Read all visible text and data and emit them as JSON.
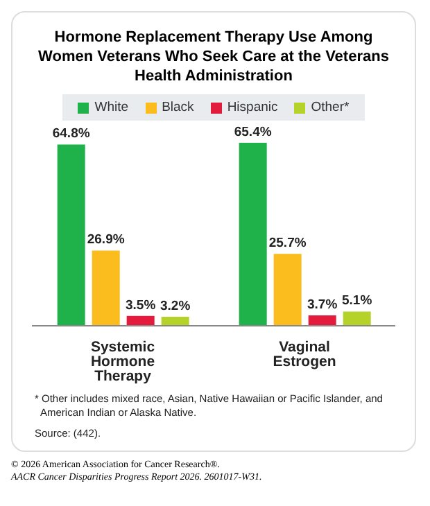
{
  "chart_data": {
    "type": "bar",
    "title": "Hormone Replacement Therapy Use Among Women Veterans Who Seek Care at the Veterans Health Administration",
    "categories": [
      "Systemic Hormone Therapy",
      "Vaginal Estrogen"
    ],
    "series": [
      {
        "name": "White",
        "color": "#1fb24a",
        "values": [
          64.8,
          65.4
        ],
        "value_labels": [
          "64.8%",
          "65.4%"
        ]
      },
      {
        "name": "Black",
        "color": "#fbbc1e",
        "values": [
          26.9,
          25.7
        ],
        "value_labels": [
          "26.9%",
          "25.7%"
        ]
      },
      {
        "name": "Hispanic",
        "color": "#e31b3c",
        "values": [
          3.5,
          3.7
        ],
        "value_labels": [
          "3.5%",
          "3.7%"
        ]
      },
      {
        "name": "Other*",
        "color": "#b5d22a",
        "values": [
          3.2,
          5.1
        ],
        "value_labels": [
          "3.2%",
          "5.1%"
        ]
      }
    ],
    "legend": "top",
    "annotations": [
      "* Other includes mixed race, Asian, Native Hawaiian or Pacific Islander, and American Indian or Alaska Native.",
      "Source: (442).",
      "© 2026 American Association for Cancer Research®.",
      "AACR Cancer Disparities Progress Report 2026. 2601017-W31."
    ]
  }
}
